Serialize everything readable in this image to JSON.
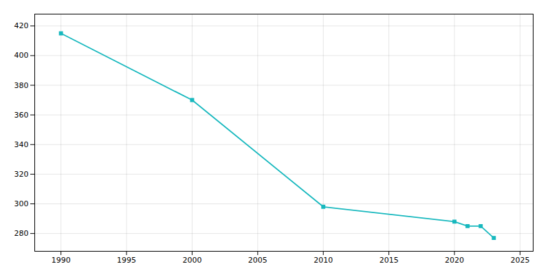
{
  "chart_data": {
    "type": "line",
    "x": [
      1990,
      2000,
      2010,
      2020,
      2021,
      2022,
      2023
    ],
    "values": [
      415,
      370,
      298,
      288,
      285,
      285,
      277
    ],
    "color": "#17b8be",
    "marker": "square",
    "xlim": [
      1988,
      2026
    ],
    "ylim": [
      268,
      428
    ],
    "xticks": [
      1990,
      1995,
      2000,
      2005,
      2010,
      2015,
      2020,
      2025
    ],
    "yticks": [
      280,
      300,
      320,
      340,
      360,
      380,
      400,
      420
    ],
    "grid": true
  }
}
